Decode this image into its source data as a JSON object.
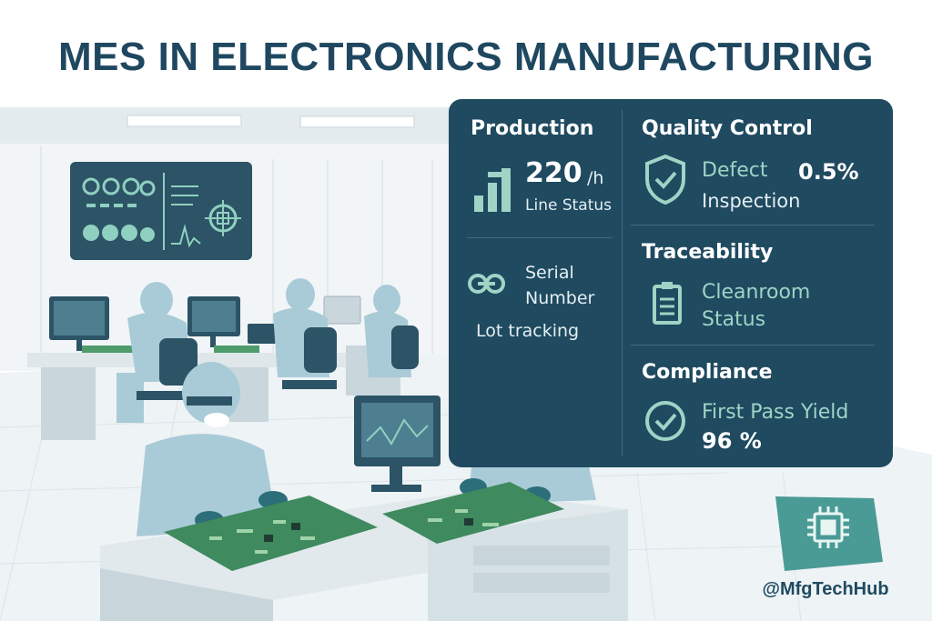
{
  "title": "MES IN ELECTRONICS MANUFACTURING",
  "panel": {
    "production": {
      "heading": "Production",
      "rate_value": "220",
      "rate_unit": "/h",
      "status_label": "Line Status",
      "icon": "bar-chart-icon"
    },
    "quality": {
      "heading": "Quality Control",
      "defect_label": "Defect",
      "defect_value": "0.5%",
      "inspection_label": "Inspection",
      "icon": "shield-check-icon"
    },
    "serial": {
      "label_line1": "Serial",
      "label_line2": "Number",
      "lot_label": "Lot tracking",
      "icon": "link-icon"
    },
    "traceability": {
      "heading": "Traceability",
      "label_line1": "Cleanroom",
      "label_line2": "Status",
      "icon": "clipboard-icon"
    },
    "compliance": {
      "heading": "Compliance",
      "fpy_label": "First Pass Yield",
      "fpy_value": "96 %",
      "icon": "check-circle-icon"
    }
  },
  "handle": "@MfgTechHub",
  "logo_icon": "microchip-icon",
  "colors": {
    "navy": "#1f4a60",
    "teal": "#9fd4c6",
    "suit": "#a9cbd7",
    "pcb": "#3f8a5e",
    "badge": "#4a9a95"
  }
}
